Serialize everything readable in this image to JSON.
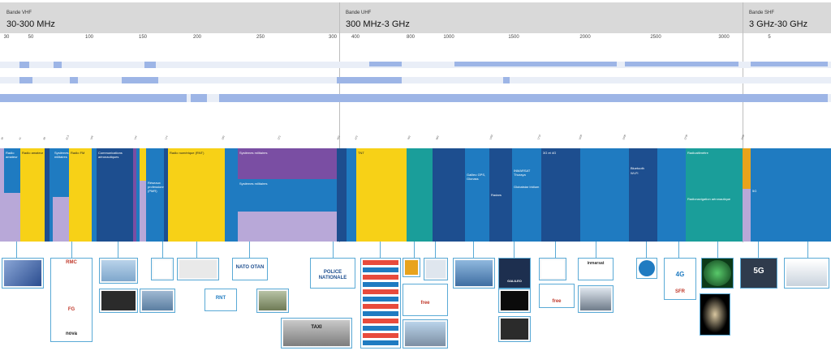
{
  "bands": [
    {
      "label": "Bande VHF",
      "range": "30-300 MHz"
    },
    {
      "label": "Bande UHF",
      "range": "300 MHz-3 GHz"
    },
    {
      "label": "Bande SHF",
      "range": "3 GHz-30 GHz"
    }
  ],
  "scale_ticks": [
    "30",
    "50",
    "100",
    "150",
    "200",
    "250",
    "300",
    "400",
    "800",
    "1000",
    "1500",
    "2000",
    "2500",
    "3000",
    "5"
  ],
  "allocations": {
    "radio_amateur": "Radio amateur",
    "systemes_militaires": "Systèmes militaires",
    "radio_fm": "Radio FM",
    "comm_aero": "Communications aéronautiques",
    "ils_vor": "ILS, VOR",
    "pmr": "Réseaux professionnels (PMR)",
    "radio_numerique": "Radio numérique (RNT)",
    "microphones": "Microphones sans fil",
    "tnt": "TNT",
    "galileo": "Galileo GPS, Glonass",
    "radars": "Radars",
    "inmarsat": "INMARSAT Thuraya",
    "globalstar": "Globalstar Iridium",
    "rfid": "RFID",
    "g3g4": "3G et 4G",
    "wifi": "Wi-Fi",
    "bluetooth": "Bluetooth",
    "radioaltimetre": "Radioaltimètre",
    "radionavigation": "Radionavigation aéronautique",
    "g5": "5G"
  },
  "thumbs": {
    "nato": "NATO OTAN",
    "police": "POLICE NATIONALE",
    "taxi": "TAXI",
    "rnt": "RNT",
    "galileo": "GALILEO",
    "inmarsat": "inmarsat",
    "g4": "4G",
    "g5": "5G",
    "free": "free",
    "sfr": "SFR",
    "nova": "nova",
    "rmc": "RMC",
    "fg": "FG"
  },
  "colors": {
    "yellow": "#f7d117",
    "blue": "#1f7bc1",
    "navy": "#1d4e8f",
    "purple": "#7a4ea3",
    "lilac": "#b8a8d8",
    "teal": "#1a9e9a",
    "orange": "#e8a31c",
    "stripe": "#9db5e6",
    "connector": "#5aaad6"
  }
}
